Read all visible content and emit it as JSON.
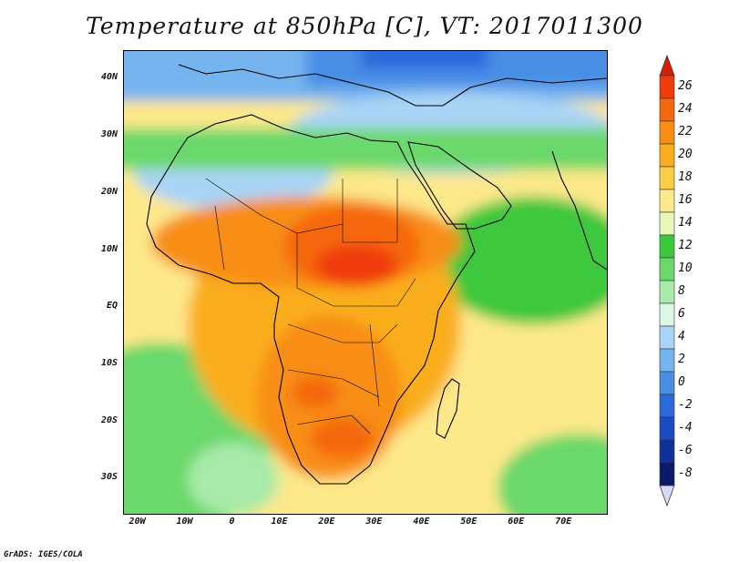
{
  "title": "Temperature at 850hPa [C], VT: 2017011300",
  "credit": "GrADS: IGES/COLA",
  "map": {
    "variable": "Temperature at 850hPa",
    "units": "C",
    "valid_time": "2017011300",
    "lon_range": [
      -23,
      79
    ],
    "lat_range": [
      -36,
      45
    ],
    "lat_ticks": [
      {
        "value": 40,
        "label": "40N"
      },
      {
        "value": 30,
        "label": "30N"
      },
      {
        "value": 20,
        "label": "20N"
      },
      {
        "value": 10,
        "label": "10N"
      },
      {
        "value": 0,
        "label": "EQ"
      },
      {
        "value": -10,
        "label": "10S"
      },
      {
        "value": -20,
        "label": "20S"
      },
      {
        "value": -30,
        "label": "30S"
      }
    ],
    "lon_ticks": [
      {
        "value": -20,
        "label": "20W"
      },
      {
        "value": -10,
        "label": "10W"
      },
      {
        "value": 0,
        "label": "0"
      },
      {
        "value": 10,
        "label": "10E"
      },
      {
        "value": 20,
        "label": "20E"
      },
      {
        "value": 30,
        "label": "30E"
      },
      {
        "value": 40,
        "label": "40E"
      },
      {
        "value": 50,
        "label": "50E"
      },
      {
        "value": 60,
        "label": "60E"
      },
      {
        "value": 70,
        "label": "70E"
      }
    ]
  },
  "colorbar": {
    "levels": [
      "26",
      "24",
      "22",
      "20",
      "18",
      "16",
      "14",
      "12",
      "10",
      "8",
      "6",
      "4",
      "2",
      "0",
      "-2",
      "-4",
      "-6",
      "-8"
    ],
    "colors": [
      "#f03b0c",
      "#f5670f",
      "#f88e12",
      "#faae1e",
      "#fbcd45",
      "#fde88a",
      "#e9f7b9",
      "#3cc83c",
      "#6bd86b",
      "#a8eaa8",
      "#dcf7e6",
      "#a8d4f5",
      "#76b4ef",
      "#4a8ee6",
      "#2c6adb",
      "#1a4bc6",
      "#10309a",
      "#0c1a6a"
    ],
    "top_arrow_color": "#d81e05",
    "bottom_arrow_color": "#d8d8f8"
  }
}
